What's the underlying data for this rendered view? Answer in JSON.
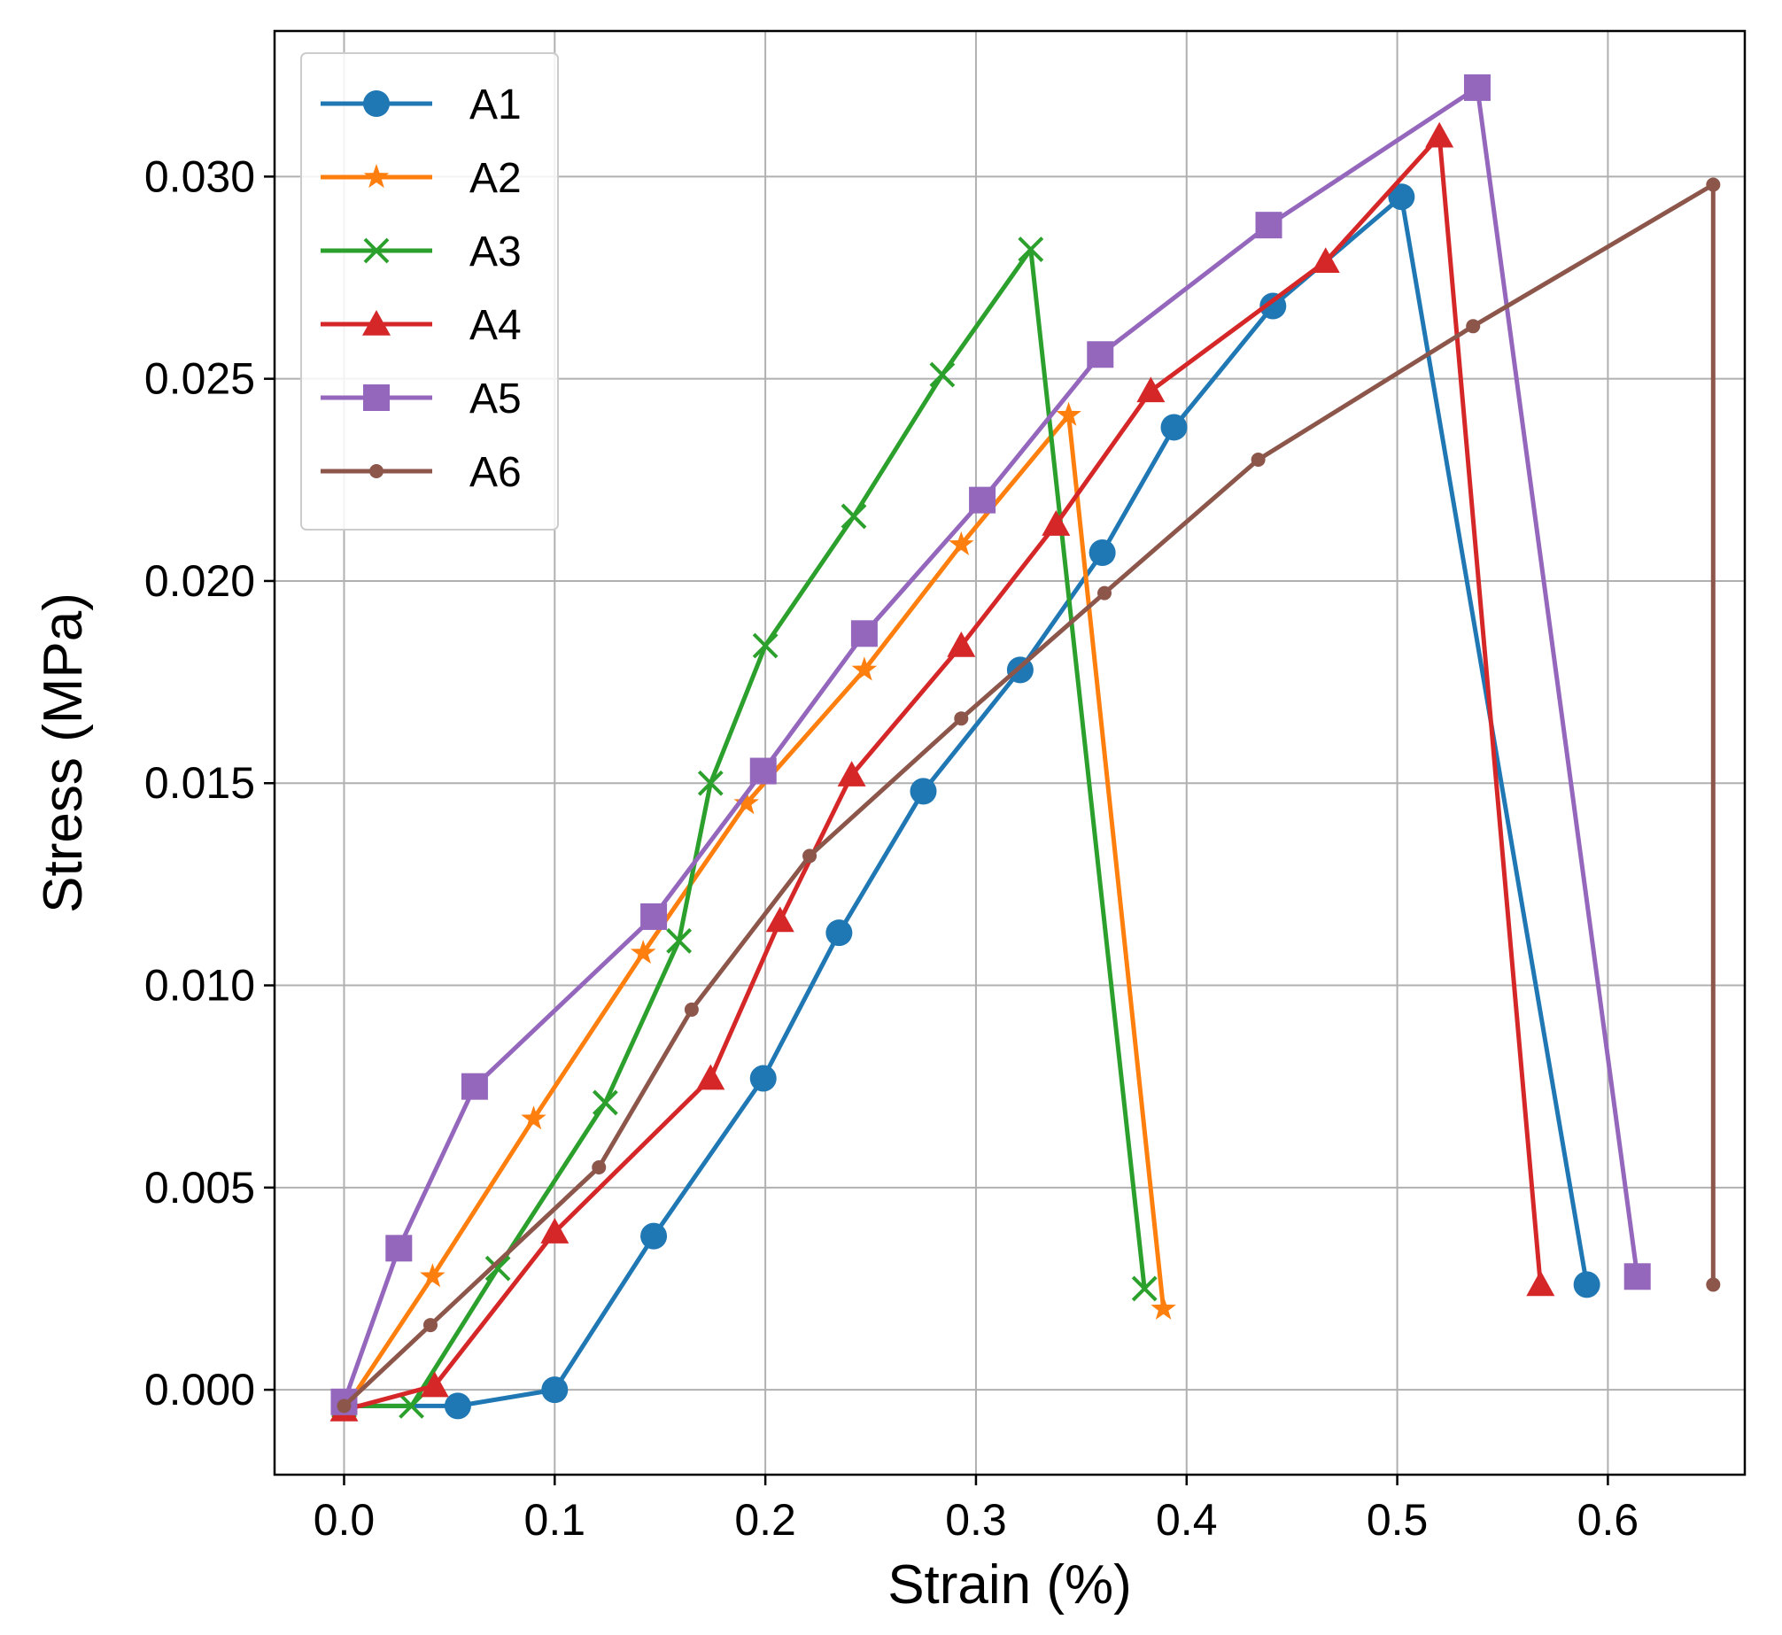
{
  "chart_data": {
    "type": "line",
    "title": "",
    "xlabel": "Strain (%)",
    "ylabel": "Stress (MPa)",
    "xlim": [
      -0.033,
      0.665
    ],
    "ylim": [
      -0.0021,
      0.0336
    ],
    "xticks": [
      0.0,
      0.1,
      0.2,
      0.3,
      0.4,
      0.5,
      0.6
    ],
    "xtick_labels": [
      "0.0",
      "0.1",
      "0.2",
      "0.3",
      "0.4",
      "0.5",
      "0.6"
    ],
    "yticks": [
      0.0,
      0.005,
      0.01,
      0.015,
      0.02,
      0.025,
      0.03
    ],
    "ytick_labels": [
      "0.000",
      "0.005",
      "0.010",
      "0.015",
      "0.020",
      "0.025",
      "0.030"
    ],
    "grid": true,
    "legend_position": "top-left",
    "series": [
      {
        "name": "A1",
        "color": "#1f77b4",
        "marker": "circle",
        "x": [
          0.0,
          0.054,
          0.1,
          0.147,
          0.199,
          0.235,
          0.275,
          0.321,
          0.36,
          0.394,
          0.441,
          0.502,
          0.59
        ],
        "y": [
          -0.0004,
          -0.0004,
          0.0,
          0.0038,
          0.0077,
          0.0113,
          0.0148,
          0.0178,
          0.0207,
          0.0238,
          0.0268,
          0.0295,
          0.0026
        ]
      },
      {
        "name": "A2",
        "color": "#ff7f0e",
        "marker": "star",
        "x": [
          0.0,
          0.042,
          0.09,
          0.142,
          0.191,
          0.247,
          0.293,
          0.344,
          0.389
        ],
        "y": [
          -0.0005,
          0.0028,
          0.0067,
          0.0108,
          0.0145,
          0.0178,
          0.0209,
          0.0241,
          0.002
        ]
      },
      {
        "name": "A3",
        "color": "#2ca02c",
        "marker": "x",
        "x": [
          0.0,
          0.032,
          0.073,
          0.124,
          0.159,
          0.174,
          0.2,
          0.242,
          0.284,
          0.326,
          0.38
        ],
        "y": [
          -0.0004,
          -0.0004,
          0.003,
          0.0071,
          0.0111,
          0.015,
          0.0184,
          0.0216,
          0.0251,
          0.0282,
          0.0025
        ]
      },
      {
        "name": "A4",
        "color": "#d62728",
        "marker": "triangle",
        "x": [
          0.0,
          0.043,
          0.1,
          0.174,
          0.207,
          0.241,
          0.293,
          0.338,
          0.383,
          0.466,
          0.52,
          0.568
        ],
        "y": [
          -0.0005,
          0.0001,
          0.0039,
          0.0077,
          0.0116,
          0.0152,
          0.0184,
          0.0214,
          0.0247,
          0.0279,
          0.031,
          0.0026
        ]
      },
      {
        "name": "A5",
        "color": "#9467bd",
        "marker": "square",
        "x": [
          0.0,
          0.026,
          0.062,
          0.147,
          0.199,
          0.247,
          0.303,
          0.359,
          0.439,
          0.538,
          0.614
        ],
        "y": [
          -0.0003,
          0.0035,
          0.0075,
          0.0117,
          0.0153,
          0.0187,
          0.022,
          0.0256,
          0.0288,
          0.0322,
          0.0028
        ]
      },
      {
        "name": "A6",
        "color": "#8c564b",
        "marker": "dot",
        "x": [
          0.0,
          0.041,
          0.121,
          0.165,
          0.221,
          0.293,
          0.361,
          0.434,
          0.536,
          0.65,
          0.65
        ],
        "y": [
          -0.0004,
          0.0016,
          0.0055,
          0.0094,
          0.0132,
          0.0166,
          0.0197,
          0.023,
          0.0263,
          0.0298,
          0.0026
        ]
      }
    ]
  }
}
